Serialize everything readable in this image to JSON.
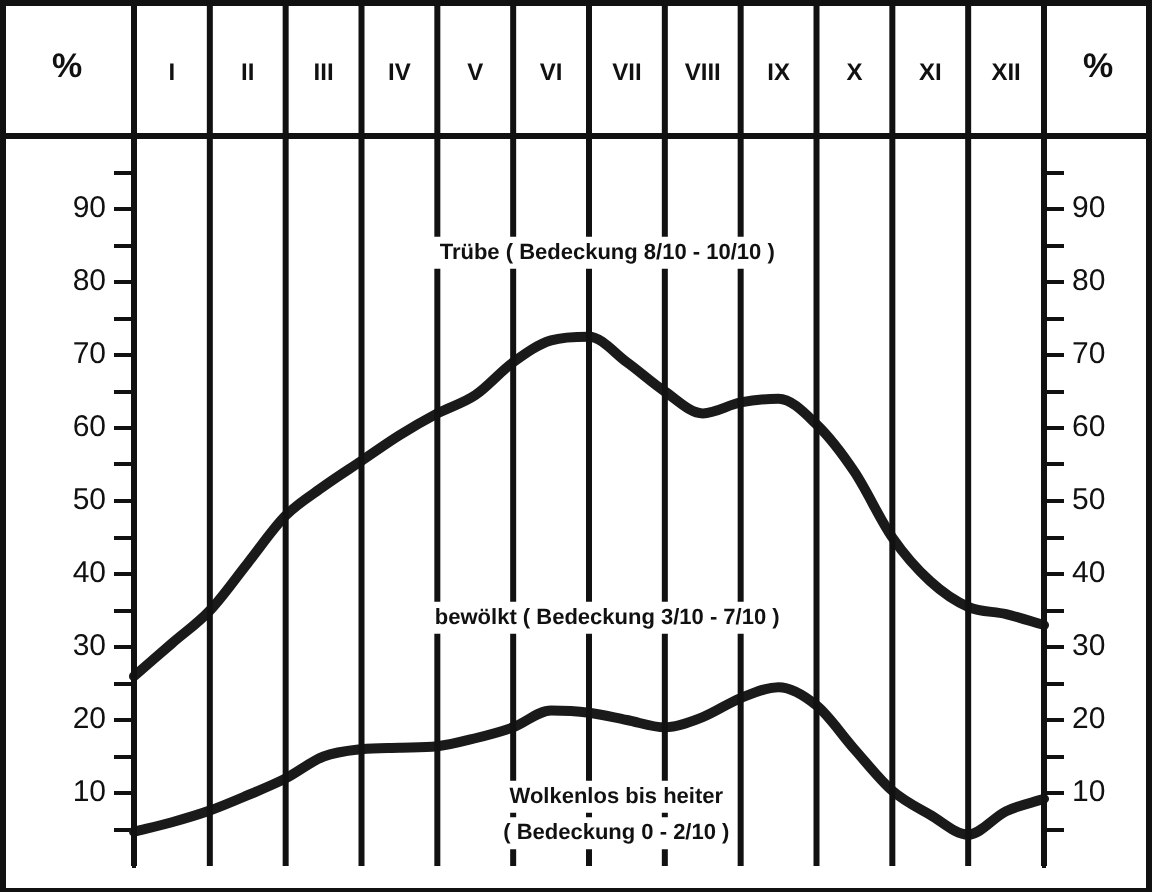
{
  "chart_data": {
    "type": "line",
    "ylabel": "%",
    "y2label": "%",
    "categories": [
      null,
      "I",
      null,
      "II",
      null,
      "III",
      null,
      "IV",
      null,
      "V",
      null,
      "VI",
      null,
      "VII",
      null,
      "VIII",
      null,
      "IX",
      null,
      "X",
      null,
      "XI",
      null,
      "XII",
      null
    ],
    "ylim": [
      0,
      100
    ],
    "yticks": [
      {
        "value": 5,
        "label": null
      },
      10,
      {
        "value": 15,
        "label": null
      },
      20,
      {
        "value": 25,
        "label": null
      },
      30,
      {
        "value": 35,
        "label": null
      },
      40,
      {
        "value": 45,
        "label": null
      },
      50,
      {
        "value": 55,
        "label": null
      },
      60,
      {
        "value": 65,
        "label": null
      },
      70,
      {
        "value": 75,
        "label": null
      },
      80,
      {
        "value": 85,
        "label": null
      },
      90,
      {
        "value": 95,
        "label": null
      }
    ],
    "y2lim": [
      0,
      100
    ],
    "y2ticks": [
      {
        "value": 5,
        "label": null
      },
      10,
      {
        "value": 15,
        "label": null
      },
      20,
      {
        "value": 25,
        "label": null
      },
      30,
      {
        "value": 35,
        "label": null
      },
      40,
      {
        "value": 45,
        "label": null
      },
      50,
      {
        "value": 55,
        "label": null
      },
      60,
      {
        "value": 65,
        "label": null
      },
      70,
      {
        "value": 75,
        "label": null
      },
      80,
      {
        "value": 85,
        "label": null
      },
      90,
      {
        "value": 95,
        "label": null
      }
    ],
    "grid": "x",
    "legend": false,
    "marker": "none",
    "line_style": "solid",
    "series": [
      {
        "color": "#1a1a1a",
        "values": [
          26,
          30.5,
          35,
          41.5,
          48,
          52,
          55.5,
          59,
          62,
          64.5,
          69,
          72,
          72.5,
          69,
          65,
          62,
          63.5,
          64,
          60.5,
          54,
          45,
          39,
          35.5,
          34.5,
          33
        ]
      },
      {
        "color": "#1a1a1a",
        "values": [
          4.7,
          6,
          7.6,
          9.7,
          12,
          15,
          16,
          16.2,
          16.4,
          17.5,
          19,
          21.3,
          21,
          20,
          19,
          20.4,
          23,
          24.5,
          22,
          16,
          10.3,
          7,
          4.3,
          7.5,
          9.2
        ]
      }
    ],
    "annotations": [
      "Trübe ( Bedeckung 8/10 - 10/10 )",
      "bewölkt ( Bedeckung 3/10 - 7/10 )",
      "Wolkenlos bis heiter",
      "( Bedeckung 0 - 2/10 )"
    ]
  }
}
